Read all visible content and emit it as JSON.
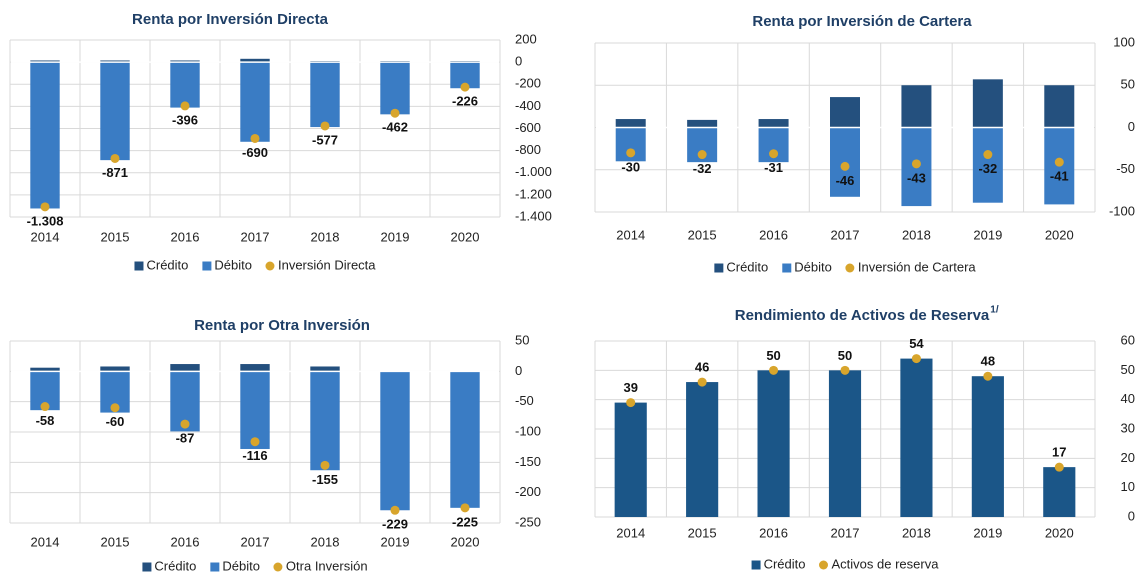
{
  "chart_data": [
    {
      "type": "bar",
      "title": "Renta por Inversión Directa",
      "categories": [
        "2014",
        "2015",
        "2016",
        "2017",
        "2018",
        "2019",
        "2020"
      ],
      "series": [
        {
          "name": "Crédito",
          "color": "#24507e",
          "values": [
            15,
            15,
            15,
            30,
            10,
            10,
            10
          ]
        },
        {
          "name": "Débito",
          "color": "#3a7cc4",
          "values": [
            -1323,
            -886,
            -411,
            -720,
            -587,
            -472,
            -236
          ]
        },
        {
          "name": "Inversión Directa",
          "color": "#d8a52c",
          "marker": "dot",
          "values": [
            -1308,
            -871,
            -396,
            -690,
            -577,
            -462,
            -226
          ],
          "value_labels": [
            "-1.308",
            "-871",
            "-396",
            "-690",
            "-577",
            "-462",
            "-226"
          ]
        }
      ],
      "ylim": [
        -1400,
        200
      ],
      "yticks": [
        200,
        0,
        -200,
        -400,
        -600,
        -800,
        {
          "value": -1000,
          "label": "-1.000"
        },
        {
          "value": -1200,
          "label": "-1.200"
        },
        {
          "value": -1400,
          "label": "-1.400"
        }
      ],
      "grid": true,
      "legend": "bottom"
    },
    {
      "type": "bar",
      "title": "Renta por Inversión de Cartera",
      "categories": [
        "2014",
        "2015",
        "2016",
        "2017",
        "2018",
        "2019",
        "2020"
      ],
      "series": [
        {
          "name": "Crédito",
          "color": "#24507e",
          "values": [
            10,
            9,
            10,
            36,
            50,
            57,
            50
          ]
        },
        {
          "name": "Débito",
          "color": "#3a7cc4",
          "values": [
            -40,
            -41,
            -41,
            -82,
            -93,
            -89,
            -91
          ]
        },
        {
          "name": "Inversión de Cartera",
          "color": "#d8a52c",
          "marker": "dot",
          "values": [
            -30,
            -32,
            -31,
            -46,
            -43,
            -32,
            -41
          ]
        }
      ],
      "ylim": [
        -100,
        100
      ],
      "yticks": [
        100,
        50,
        0,
        -50,
        -100
      ],
      "grid": true,
      "legend": "bottom"
    },
    {
      "type": "bar",
      "title": "Renta por Otra Inversión",
      "categories": [
        "2014",
        "2015",
        "2016",
        "2017",
        "2018",
        "2019",
        "2020"
      ],
      "series": [
        {
          "name": "Crédito",
          "color": "#24507e",
          "values": [
            6,
            8,
            12,
            12,
            8,
            0,
            0
          ]
        },
        {
          "name": "Débito",
          "color": "#3a7cc4",
          "values": [
            -64,
            -68,
            -99,
            -128,
            -163,
            -229,
            -225
          ]
        },
        {
          "name": "Otra Inversión",
          "color": "#d8a52c",
          "marker": "dot",
          "values": [
            -58,
            -60,
            -87,
            -116,
            -155,
            -229,
            -225
          ]
        }
      ],
      "ylim": [
        -250,
        50
      ],
      "yticks": [
        50,
        0,
        -50,
        -100,
        -150,
        -200,
        -250
      ],
      "grid": true,
      "legend": "bottom"
    },
    {
      "type": "bar",
      "title": "Rendimiento de Activos de Reserva",
      "title_superscript": "1/",
      "categories": [
        "2014",
        "2015",
        "2016",
        "2017",
        "2018",
        "2019",
        "2020"
      ],
      "series": [
        {
          "name": "Crédito",
          "color": "#1b5688",
          "values": [
            39,
            46,
            50,
            50,
            54,
            48,
            17
          ]
        },
        {
          "name": "Activos de reserva",
          "color": "#d8a52c",
          "marker": "dot",
          "values": [
            39,
            46,
            50,
            50,
            54,
            48,
            17
          ]
        }
      ],
      "ylim": [
        0,
        60
      ],
      "yticks": [
        60,
        50,
        40,
        30,
        20,
        10,
        0
      ],
      "grid": true,
      "legend": "bottom"
    }
  ]
}
